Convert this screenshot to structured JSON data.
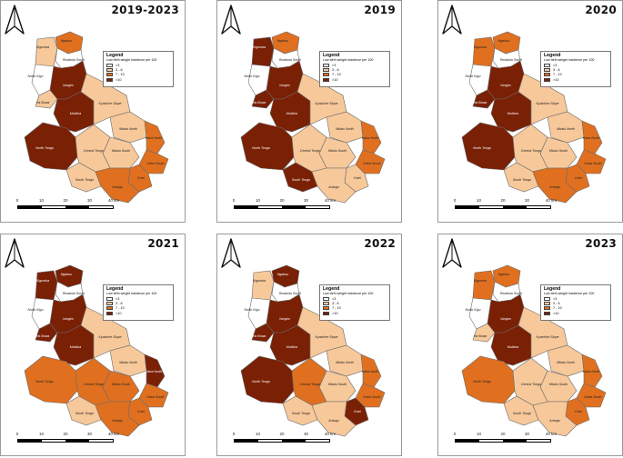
{
  "legend": {
    "title": "Legend",
    "subtitle": "Low birth weight incidence per 100",
    "classes": [
      {
        "label": "<3",
        "color": "#ffffff"
      },
      {
        "label": "3 - 6",
        "color": "#f7c89a"
      },
      {
        "label": "7 - 10",
        "color": "#e0701f"
      },
      {
        "label": ">10",
        "color": "#7a2005"
      }
    ]
  },
  "scale": {
    "ticks": [
      "0",
      "10",
      "20",
      "30",
      "40 km"
    ]
  },
  "region_names": [
    "Ngabou",
    "Kigumba",
    "Rwabola South",
    "North Kigu",
    "Ha Bowa",
    "Isingiro",
    "Mulisha",
    "Kyaichire Slope",
    "Mbalu North",
    "North Tongo",
    "Mbalu South",
    "Katra North",
    "Central Tongo",
    "Katra South",
    "South Tongo",
    "Katri",
    "Antogo"
  ],
  "panels": [
    {
      "title": "2019-2023",
      "fills": [
        2,
        1,
        0,
        0,
        1,
        3,
        3,
        1,
        1,
        3,
        1,
        2,
        1,
        2,
        1,
        2,
        2
      ]
    },
    {
      "title": "2019",
      "fills": [
        2,
        3,
        0,
        0,
        3,
        3,
        3,
        1,
        1,
        3,
        1,
        2,
        1,
        2,
        3,
        1,
        1
      ]
    },
    {
      "title": "2020",
      "fills": [
        2,
        2,
        0,
        0,
        3,
        3,
        3,
        1,
        1,
        3,
        1,
        2,
        1,
        2,
        1,
        2,
        2
      ]
    },
    {
      "title": "2021",
      "fills": [
        3,
        3,
        0,
        0,
        3,
        3,
        3,
        1,
        1,
        2,
        2,
        3,
        2,
        2,
        1,
        2,
        2
      ]
    },
    {
      "title": "2022",
      "fills": [
        3,
        1,
        0,
        0,
        3,
        3,
        3,
        1,
        1,
        3,
        1,
        2,
        2,
        2,
        1,
        3,
        1
      ]
    },
    {
      "title": "2023",
      "fills": [
        2,
        2,
        0,
        0,
        1,
        3,
        3,
        1,
        1,
        2,
        1,
        2,
        1,
        2,
        1,
        2,
        1
      ]
    }
  ]
}
